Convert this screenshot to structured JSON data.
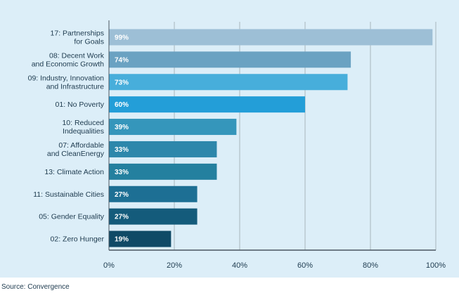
{
  "chart_data": {
    "type": "bar",
    "orientation": "horizontal",
    "categories": [
      [
        "17: Partnerships",
        "for Goals"
      ],
      [
        "08: Decent Work",
        "and Economic Growth"
      ],
      [
        "09: Industry, Innovation",
        "and Infrastructure"
      ],
      [
        "01: No Poverty"
      ],
      [
        "10: Reduced",
        "Indequalities"
      ],
      [
        "07: Affordable",
        "and CleanEnergy"
      ],
      [
        "13: Climate Action"
      ],
      [
        "11: Sustainable Cities"
      ],
      [
        "05: Gender Equality"
      ],
      [
        "02: Zero Hunger"
      ]
    ],
    "values": [
      99,
      74,
      73,
      60,
      39,
      33,
      33,
      27,
      27,
      19
    ],
    "value_labels": [
      "99%",
      "74%",
      "73%",
      "60%",
      "39%",
      "33%",
      "33%",
      "27%",
      "27%",
      "19%"
    ],
    "bar_colors": [
      "#9dbfd6",
      "#6aa2c2",
      "#47aedb",
      "#239ed8",
      "#3596bb",
      "#2d87ab",
      "#24809f",
      "#1d6f94",
      "#145b7b",
      "#0f4a66"
    ],
    "x_ticks": [
      "0%",
      "20%",
      "40%",
      "60%",
      "80%",
      "100%"
    ],
    "xlim": [
      0,
      100
    ],
    "grid": true,
    "background": "#dceef8"
  },
  "source_note": "Source: Convergence"
}
